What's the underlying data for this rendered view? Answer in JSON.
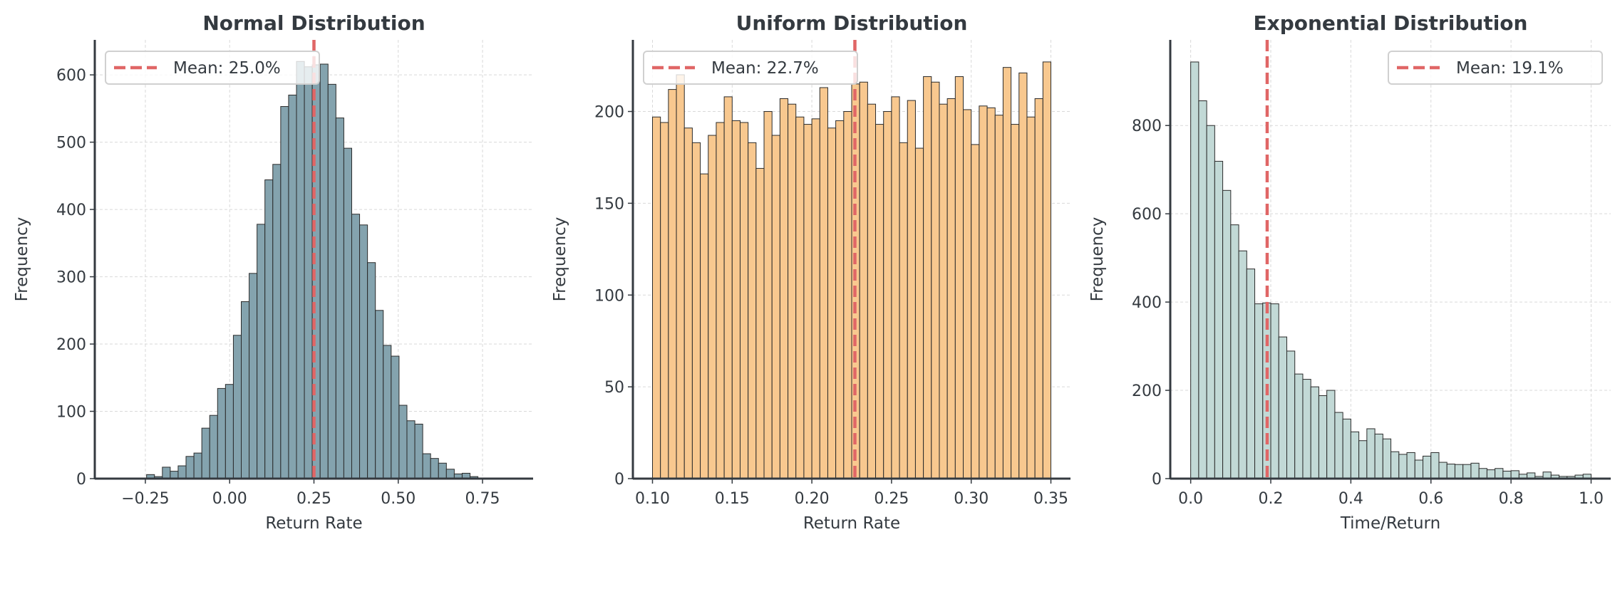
{
  "colors": {
    "text": "#343a40",
    "mean_line": "#e06666",
    "edge": "#2b2b2b",
    "grid": "#d9d9d9"
  },
  "chart_data": [
    {
      "type": "bar",
      "title": "Normal Distribution",
      "xlabel": "Return Rate",
      "ylabel": "Frequency",
      "bin_start": -0.34,
      "bin_width": 0.0234,
      "values": [
        1,
        0,
        0,
        0,
        6,
        3,
        17,
        11,
        19,
        33,
        38,
        75,
        94,
        134,
        140,
        213,
        263,
        305,
        378,
        444,
        467,
        553,
        570,
        620,
        612,
        615,
        616,
        586,
        536,
        491,
        393,
        377,
        321,
        250,
        198,
        182,
        109,
        86,
        81,
        37,
        30,
        23,
        14,
        7,
        8,
        3,
        1,
        0,
        0,
        1
      ],
      "xlim": [
        -0.4,
        0.9
      ],
      "ylim": [
        0,
        652
      ],
      "xticks": [
        -0.25,
        0.0,
        0.25,
        0.5,
        0.75
      ],
      "xtick_labels": [
        "−0.25",
        "0.00",
        "0.25",
        "0.50",
        "0.75"
      ],
      "yticks": [
        0,
        100,
        200,
        300,
        400,
        500,
        600
      ],
      "ytick_labels": [
        "0",
        "100",
        "200",
        "300",
        "400",
        "500",
        "600"
      ],
      "mean": 0.25,
      "legend": "Mean: 25.0%",
      "legend_position": "top-left",
      "bar_color": "#84a3ae",
      "grid": true
    },
    {
      "type": "bar",
      "title": "Uniform Distribution",
      "xlabel": "Return Rate",
      "ylabel": "Frequency",
      "bin_start": 0.1,
      "bin_width": 0.005,
      "values": [
        197,
        194,
        212,
        220,
        191,
        183,
        166,
        187,
        194,
        208,
        195,
        194,
        183,
        169,
        200,
        187,
        207,
        204,
        197,
        193,
        196,
        213,
        191,
        195,
        200,
        215,
        216,
        204,
        193,
        200,
        208,
        183,
        206,
        180,
        219,
        216,
        204,
        207,
        219,
        201,
        182,
        203,
        202,
        198,
        224,
        193,
        221,
        197,
        207,
        227
      ],
      "xlim": [
        0.0877,
        0.3623
      ],
      "ylim": [
        0,
        239
      ],
      "xticks": [
        0.1,
        0.15,
        0.2,
        0.25,
        0.3,
        0.35
      ],
      "xtick_labels": [
        "0.10",
        "0.15",
        "0.20",
        "0.25",
        "0.30",
        "0.35"
      ],
      "yticks": [
        0,
        50,
        100,
        150,
        200
      ],
      "ytick_labels": [
        "0",
        "50",
        "100",
        "150",
        "200"
      ],
      "mean": 0.227,
      "legend": "Mean: 22.7%",
      "legend_position": "top-left",
      "bar_color": "#f8c88f",
      "grid": true
    },
    {
      "type": "bar",
      "title": "Exponential Distribution",
      "xlabel": "Time/Return",
      "ylabel": "Frequency",
      "bin_start": 0.0,
      "bin_width": 0.02,
      "values": [
        944,
        856,
        800,
        719,
        653,
        575,
        516,
        475,
        396,
        398,
        396,
        321,
        289,
        237,
        225,
        208,
        188,
        200,
        150,
        135,
        106,
        86,
        113,
        101,
        90,
        61,
        55,
        59,
        42,
        51,
        59,
        37,
        33,
        32,
        32,
        35,
        23,
        20,
        23,
        17,
        18,
        10,
        13,
        5,
        15,
        8,
        5,
        5,
        8,
        10
      ],
      "xlim": [
        -0.051,
        1.049
      ],
      "ylim": [
        0,
        994
      ],
      "xticks": [
        0.0,
        0.2,
        0.4,
        0.6,
        0.8,
        1.0
      ],
      "xtick_labels": [
        "0.0",
        "0.2",
        "0.4",
        "0.6",
        "0.8",
        "1.0"
      ],
      "yticks": [
        0,
        200,
        400,
        600,
        800
      ],
      "ytick_labels": [
        "0",
        "200",
        "400",
        "600",
        "800"
      ],
      "mean": 0.191,
      "legend": "Mean: 19.1%",
      "legend_position": "top-right",
      "bar_color": "#c2d9d6",
      "grid": true
    }
  ]
}
